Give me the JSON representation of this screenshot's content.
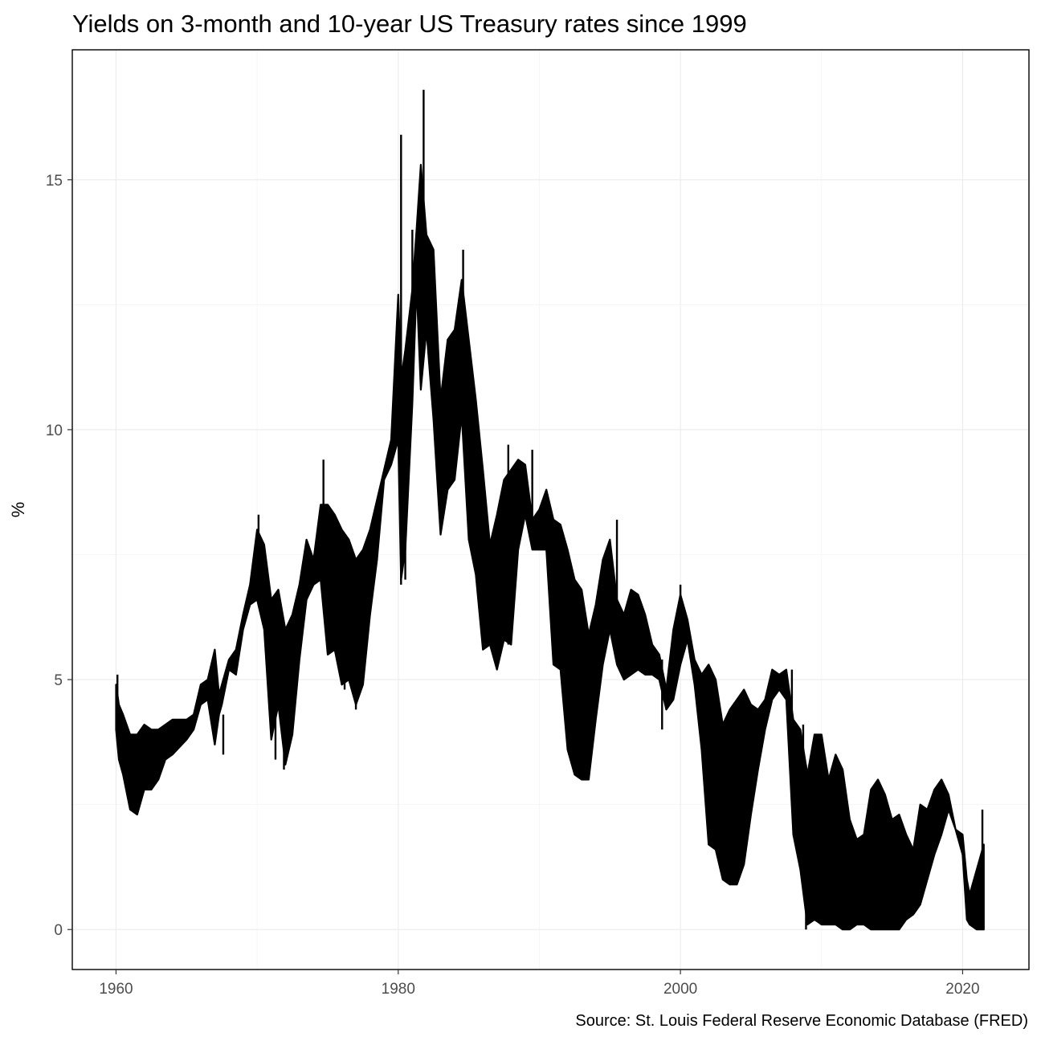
{
  "chart_data": {
    "type": "line",
    "title": "Yields on 3-month and 10-year US Treasury rates since 1999",
    "xlabel": "",
    "ylabel": "%",
    "caption": "Source: St. Louis Federal Reserve Economic Database (FRED)",
    "xlim": [
      1956.9,
      2024.7
    ],
    "ylim": [
      -0.8,
      17.6
    ],
    "x_ticks": [
      1960,
      1980,
      2000,
      2020
    ],
    "y_ticks": [
      0,
      5,
      10,
      15
    ],
    "grid": true,
    "legend": "none",
    "series_color": "#000000",
    "band": {
      "x": [
        1960.0,
        1960.2,
        1960.5,
        1961.0,
        1961.5,
        1962.0,
        1962.5,
        1963.0,
        1963.5,
        1964.0,
        1965.0,
        1965.5,
        1966.0,
        1966.5,
        1967.0,
        1967.3,
        1967.5,
        1968.0,
        1968.5,
        1969.0,
        1969.5,
        1970.0,
        1970.5,
        1971.0,
        1971.5,
        1972.0,
        1972.5,
        1973.0,
        1973.5,
        1974.0,
        1974.5,
        1975.0,
        1975.5,
        1976.0,
        1976.5,
        1977.0,
        1977.5,
        1978.0,
        1978.5,
        1979.0,
        1979.5,
        1980.0,
        1980.2,
        1980.5,
        1981.0,
        1981.3,
        1981.6,
        1982.0,
        1982.5,
        1983.0,
        1983.5,
        1984.0,
        1984.5,
        1985.0,
        1985.5,
        1986.0,
        1986.5,
        1987.0,
        1987.5,
        1988.0,
        1988.5,
        1989.0,
        1989.5,
        1990.0,
        1990.5,
        1991.0,
        1991.5,
        1992.0,
        1992.5,
        1993.0,
        1993.5,
        1994.0,
        1994.5,
        1995.0,
        1995.5,
        1996.0,
        1996.5,
        1997.0,
        1997.5,
        1998.0,
        1998.5,
        1999.0,
        1999.5,
        2000.0,
        2000.5,
        2001.0,
        2001.5,
        2002.0,
        2002.5,
        2003.0,
        2003.5,
        2004.0,
        2004.5,
        2005.0,
        2005.5,
        2006.0,
        2006.5,
        2007.0,
        2007.5,
        2008.0,
        2008.5,
        2009.0,
        2009.5,
        2010.0,
        2010.5,
        2011.0,
        2011.5,
        2012.0,
        2012.5,
        2013.0,
        2013.5,
        2014.0,
        2014.5,
        2015.0,
        2015.5,
        2016.0,
        2016.5,
        2017.0,
        2017.5,
        2018.0,
        2018.5,
        2019.0,
        2019.5,
        2020.0,
        2020.3,
        2020.5,
        2021.0,
        2021.5
      ],
      "upper": [
        4.9,
        4.5,
        4.3,
        3.9,
        3.9,
        4.1,
        4.0,
        4.0,
        4.1,
        4.2,
        4.2,
        4.3,
        4.9,
        5.0,
        5.6,
        4.7,
        4.9,
        5.4,
        5.6,
        6.3,
        6.9,
        8.0,
        7.7,
        6.6,
        6.8,
        6.0,
        6.3,
        6.9,
        7.8,
        7.4,
        8.5,
        8.5,
        8.3,
        8.0,
        7.8,
        7.4,
        7.6,
        8.0,
        8.6,
        9.2,
        9.8,
        12.7,
        11.0,
        11.6,
        12.8,
        14.0,
        15.3,
        13.9,
        13.6,
        10.6,
        11.8,
        12.0,
        13.0,
        11.8,
        10.6,
        9.2,
        7.7,
        8.3,
        9.0,
        9.2,
        9.4,
        9.3,
        8.2,
        8.4,
        8.8,
        8.2,
        8.1,
        7.6,
        7.0,
        6.8,
        5.9,
        6.5,
        7.4,
        7.8,
        6.6,
        6.3,
        6.8,
        6.7,
        6.3,
        5.7,
        5.5,
        4.8,
        6.0,
        6.7,
        6.2,
        5.4,
        5.1,
        5.3,
        5.0,
        4.1,
        4.4,
        4.6,
        4.8,
        4.5,
        4.4,
        4.6,
        5.2,
        5.1,
        5.2,
        4.2,
        4.0,
        3.1,
        3.9,
        3.9,
        3.0,
        3.5,
        3.2,
        2.2,
        1.8,
        1.9,
        2.8,
        3.0,
        2.7,
        2.2,
        2.3,
        1.9,
        1.6,
        2.5,
        2.4,
        2.8,
        3.0,
        2.7,
        2.0,
        1.9,
        1.0,
        0.7,
        1.2,
        1.7
      ],
      "lower": [
        4.0,
        3.4,
        3.1,
        2.4,
        2.3,
        2.8,
        2.8,
        3.0,
        3.4,
        3.5,
        3.8,
        4.0,
        4.5,
        4.6,
        3.7,
        4.3,
        4.5,
        5.2,
        5.1,
        6.0,
        6.5,
        6.6,
        6.0,
        3.8,
        4.5,
        3.3,
        3.9,
        5.4,
        6.6,
        6.9,
        7.0,
        5.5,
        5.6,
        4.9,
        5.0,
        4.5,
        4.9,
        6.3,
        7.4,
        9.0,
        9.3,
        9.8,
        7.0,
        7.6,
        10.5,
        12.9,
        10.8,
        12.0,
        10.2,
        7.9,
        8.8,
        9.0,
        10.3,
        7.8,
        7.1,
        5.6,
        5.7,
        5.2,
        5.8,
        5.7,
        7.6,
        8.3,
        7.6,
        7.6,
        7.6,
        5.3,
        5.2,
        3.6,
        3.1,
        3.0,
        3.0,
        4.2,
        5.3,
        6.0,
        5.3,
        5.0,
        5.1,
        5.2,
        5.1,
        5.1,
        5.0,
        4.4,
        4.6,
        5.3,
        5.8,
        4.9,
        3.6,
        1.7,
        1.6,
        1.0,
        0.9,
        0.9,
        1.3,
        2.3,
        3.2,
        4.0,
        4.6,
        4.8,
        4.6,
        1.9,
        1.2,
        0.1,
        0.2,
        0.1,
        0.1,
        0.1,
        0.0,
        0.0,
        0.1,
        0.1,
        0.0,
        0.0,
        0.0,
        0.0,
        0.0,
        0.2,
        0.3,
        0.5,
        1.0,
        1.5,
        1.9,
        2.4,
        2.0,
        1.5,
        0.2,
        0.1,
        0.0,
        0.0
      ],
      "spikes": [
        {
          "x": 1960.1,
          "low": 3.9,
          "high": 5.1
        },
        {
          "x": 1967.6,
          "low": 3.5,
          "high": 4.3
        },
        {
          "x": 1970.1,
          "low": 7.0,
          "high": 8.3
        },
        {
          "x": 1971.3,
          "low": 3.4,
          "high": 4.9
        },
        {
          "x": 1971.9,
          "low": 3.2,
          "high": 4.7
        },
        {
          "x": 1974.7,
          "low": 8.0,
          "high": 9.4
        },
        {
          "x": 1976.2,
          "low": 4.8,
          "high": 6.4
        },
        {
          "x": 1977.0,
          "low": 4.4,
          "high": 5.6
        },
        {
          "x": 1980.2,
          "low": 6.9,
          "high": 15.9
        },
        {
          "x": 1980.5,
          "low": 7.0,
          "high": 10.0
        },
        {
          "x": 1981.0,
          "low": 11.1,
          "high": 14.0
        },
        {
          "x": 1981.8,
          "low": 11.8,
          "high": 16.8
        },
        {
          "x": 1984.6,
          "low": 10.5,
          "high": 13.6
        },
        {
          "x": 1987.8,
          "low": 5.7,
          "high": 9.7
        },
        {
          "x": 1989.5,
          "low": 7.8,
          "high": 9.6
        },
        {
          "x": 1995.5,
          "low": 5.9,
          "high": 8.2
        },
        {
          "x": 1998.7,
          "low": 4.0,
          "high": 5.4
        },
        {
          "x": 2000.0,
          "low": 5.8,
          "high": 6.9
        },
        {
          "x": 2007.9,
          "low": 3.2,
          "high": 5.2
        },
        {
          "x": 2008.7,
          "low": 1.2,
          "high": 4.1
        },
        {
          "x": 2008.9,
          "low": 0.0,
          "high": 3.3
        },
        {
          "x": 2021.4,
          "low": 0.0,
          "high": 2.4
        }
      ]
    }
  }
}
